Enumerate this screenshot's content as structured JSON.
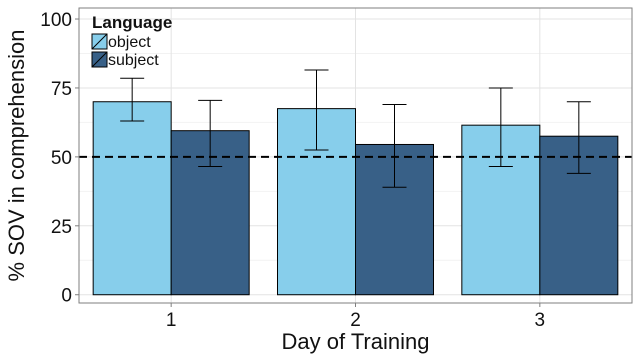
{
  "chart_data": {
    "type": "bar",
    "xlabel": "Day of Training",
    "ylabel": "% SOV in comprehension",
    "categories": [
      "1",
      "2",
      "3"
    ],
    "ylim": [
      -3,
      104
    ],
    "yticks": [
      0,
      25,
      50,
      75,
      100
    ],
    "grid": true,
    "legend": {
      "title": "Language",
      "position": "top-left"
    },
    "reference_line": {
      "y": 50,
      "style": "dashed"
    },
    "series": [
      {
        "name": "object",
        "color": "#87CEEB",
        "values": [
          70,
          67.5,
          61.5
        ],
        "error_low": [
          63,
          52.5,
          46.5
        ],
        "error_high": [
          78.5,
          81.5,
          75
        ]
      },
      {
        "name": "subject",
        "color": "#386087",
        "values": [
          59.5,
          54.5,
          57.5
        ],
        "error_low": [
          46.5,
          39,
          44
        ],
        "error_high": [
          70.5,
          69,
          70
        ]
      }
    ]
  }
}
